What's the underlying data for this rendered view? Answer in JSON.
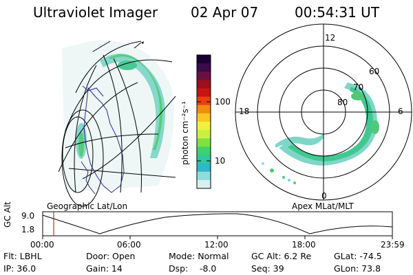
{
  "header": {
    "instrument": "Ultraviolet Imager",
    "date": "02 Apr 07",
    "time": "00:54:31 UT"
  },
  "colorbar": {
    "label": "photon cm⁻²s⁻¹",
    "ticks": [
      "100",
      "10"
    ],
    "colors": [
      "#1a0030",
      "#3a0a4a",
      "#6a1040",
      "#9a1020",
      "#c81410",
      "#e84010",
      "#f08c10",
      "#f8c820",
      "#f0f040",
      "#c8f040",
      "#80e040",
      "#40d070",
      "#30c8a0",
      "#30b8c8",
      "#90dcdc",
      "#d8f0f0"
    ]
  },
  "left_panel": {
    "label": "Geographic Lat/Lon"
  },
  "right_panel": {
    "label": "Apex MLat/MLT",
    "mlt_labels": [
      "12",
      "18",
      "6",
      "0"
    ],
    "lat_labels": [
      "60",
      "70",
      "80"
    ]
  },
  "gc_plot": {
    "ylabel": "GC Alt",
    "yticks": [
      "9.0",
      "1.8"
    ],
    "xticks": [
      "00:00",
      "06:00",
      "12:00",
      "18:00",
      "23:59"
    ],
    "marker_time": "00:54"
  },
  "info": {
    "flt": "Flt: LBHL",
    "door": "Door: Open",
    "mode": "Mode: Normal",
    "gc_alt": "GC Alt: 6.2 Re",
    "glat": "GLat: -74.5",
    "ip": "IP: 36.0",
    "gain": "Gain: 14",
    "dsp_label": "Dsp:",
    "dsp_value": "-8.0",
    "seq": "Seq: 39",
    "glon": "GLon: 73.8"
  }
}
